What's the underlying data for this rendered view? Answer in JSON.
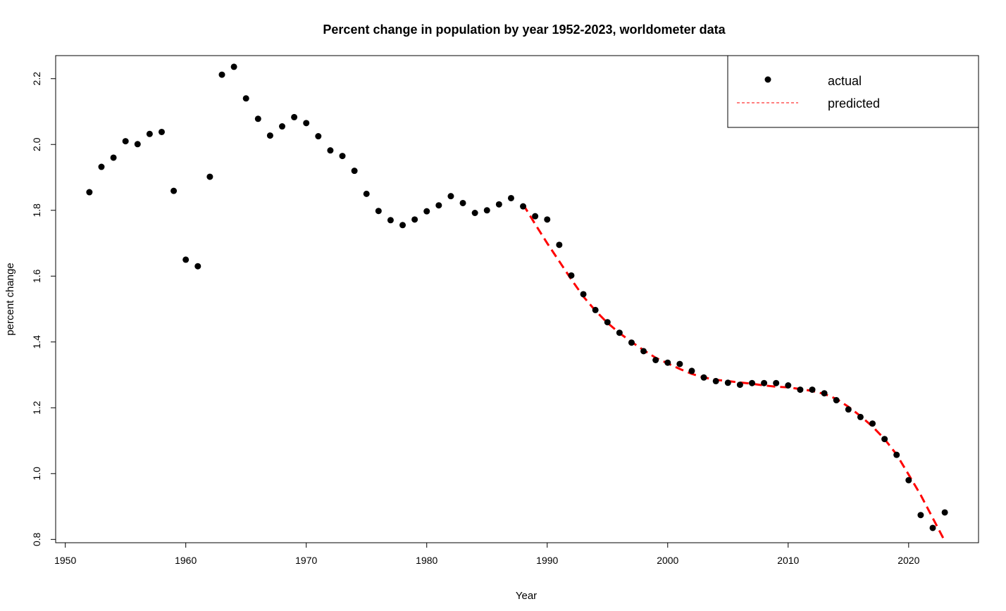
{
  "chart_data": {
    "type": "scatter",
    "title": "Percent change in population by year 1952-2023, worldometer data",
    "xlabel": "Year",
    "ylabel": "percent change",
    "xlim": [
      1949.2,
      2025.8
    ],
    "ylim": [
      0.79,
      2.27
    ],
    "xticks": [
      1950,
      1960,
      1970,
      1980,
      1990,
      2000,
      2010,
      2020
    ],
    "yticks": [
      0.8,
      1.0,
      1.2,
      1.4,
      1.6,
      1.8,
      2.0,
      2.2
    ],
    "legend_position": "top-right",
    "grid": false,
    "colors": {
      "actual": "#000000",
      "predicted": "#ff0000"
    },
    "series": [
      {
        "name": "actual",
        "style": "points",
        "x": [
          1952,
          1953,
          1954,
          1955,
          1956,
          1957,
          1958,
          1959,
          1960,
          1961,
          1962,
          1963,
          1964,
          1965,
          1966,
          1967,
          1968,
          1969,
          1970,
          1971,
          1972,
          1973,
          1974,
          1975,
          1976,
          1977,
          1978,
          1979,
          1980,
          1981,
          1982,
          1983,
          1984,
          1985,
          1986,
          1987,
          1988,
          1989,
          1990,
          1991,
          1992,
          1993,
          1994,
          1995,
          1996,
          1997,
          1998,
          1999,
          2000,
          2001,
          2002,
          2003,
          2004,
          2005,
          2006,
          2007,
          2008,
          2009,
          2010,
          2011,
          2012,
          2013,
          2014,
          2015,
          2016,
          2017,
          2018,
          2019,
          2020,
          2021,
          2022,
          2023
        ],
        "y": [
          1.855,
          1.932,
          1.96,
          2.01,
          2.001,
          2.032,
          2.038,
          1.859,
          1.65,
          1.63,
          1.902,
          2.212,
          2.236,
          2.14,
          2.078,
          2.027,
          2.055,
          2.083,
          2.065,
          2.025,
          1.982,
          1.965,
          1.92,
          1.85,
          1.798,
          1.77,
          1.755,
          1.772,
          1.797,
          1.815,
          1.843,
          1.822,
          1.792,
          1.8,
          1.818,
          1.837,
          1.812,
          1.782,
          1.772,
          1.695,
          1.602,
          1.545,
          1.497,
          1.46,
          1.428,
          1.398,
          1.372,
          1.345,
          1.337,
          1.333,
          1.312,
          1.292,
          1.281,
          1.276,
          1.27,
          1.275,
          1.275,
          1.275,
          1.268,
          1.255,
          1.255,
          1.244,
          1.223,
          1.195,
          1.172,
          1.152,
          1.105,
          1.057,
          0.98,
          0.874,
          0.835,
          0.882
        ]
      },
      {
        "name": "predicted",
        "style": "dashed-line",
        "x": [
          1988,
          1989,
          1990,
          1991,
          1992,
          1993,
          1994,
          1995,
          1996,
          1997,
          1998,
          1999,
          2000,
          2001,
          2002,
          2003,
          2004,
          2005,
          2006,
          2007,
          2008,
          2009,
          2010,
          2011,
          2012,
          2013,
          2014,
          2015,
          2016,
          2017,
          2018,
          2019,
          2020,
          2021,
          2022,
          2023
        ],
        "y": [
          1.818,
          1.758,
          1.7,
          1.645,
          1.59,
          1.538,
          1.495,
          1.458,
          1.427,
          1.4,
          1.375,
          1.352,
          1.335,
          1.318,
          1.303,
          1.292,
          1.285,
          1.281,
          1.277,
          1.273,
          1.268,
          1.264,
          1.262,
          1.257,
          1.251,
          1.242,
          1.227,
          1.203,
          1.175,
          1.143,
          1.105,
          1.058,
          0.997,
          0.935,
          0.865,
          0.795
        ]
      }
    ]
  }
}
